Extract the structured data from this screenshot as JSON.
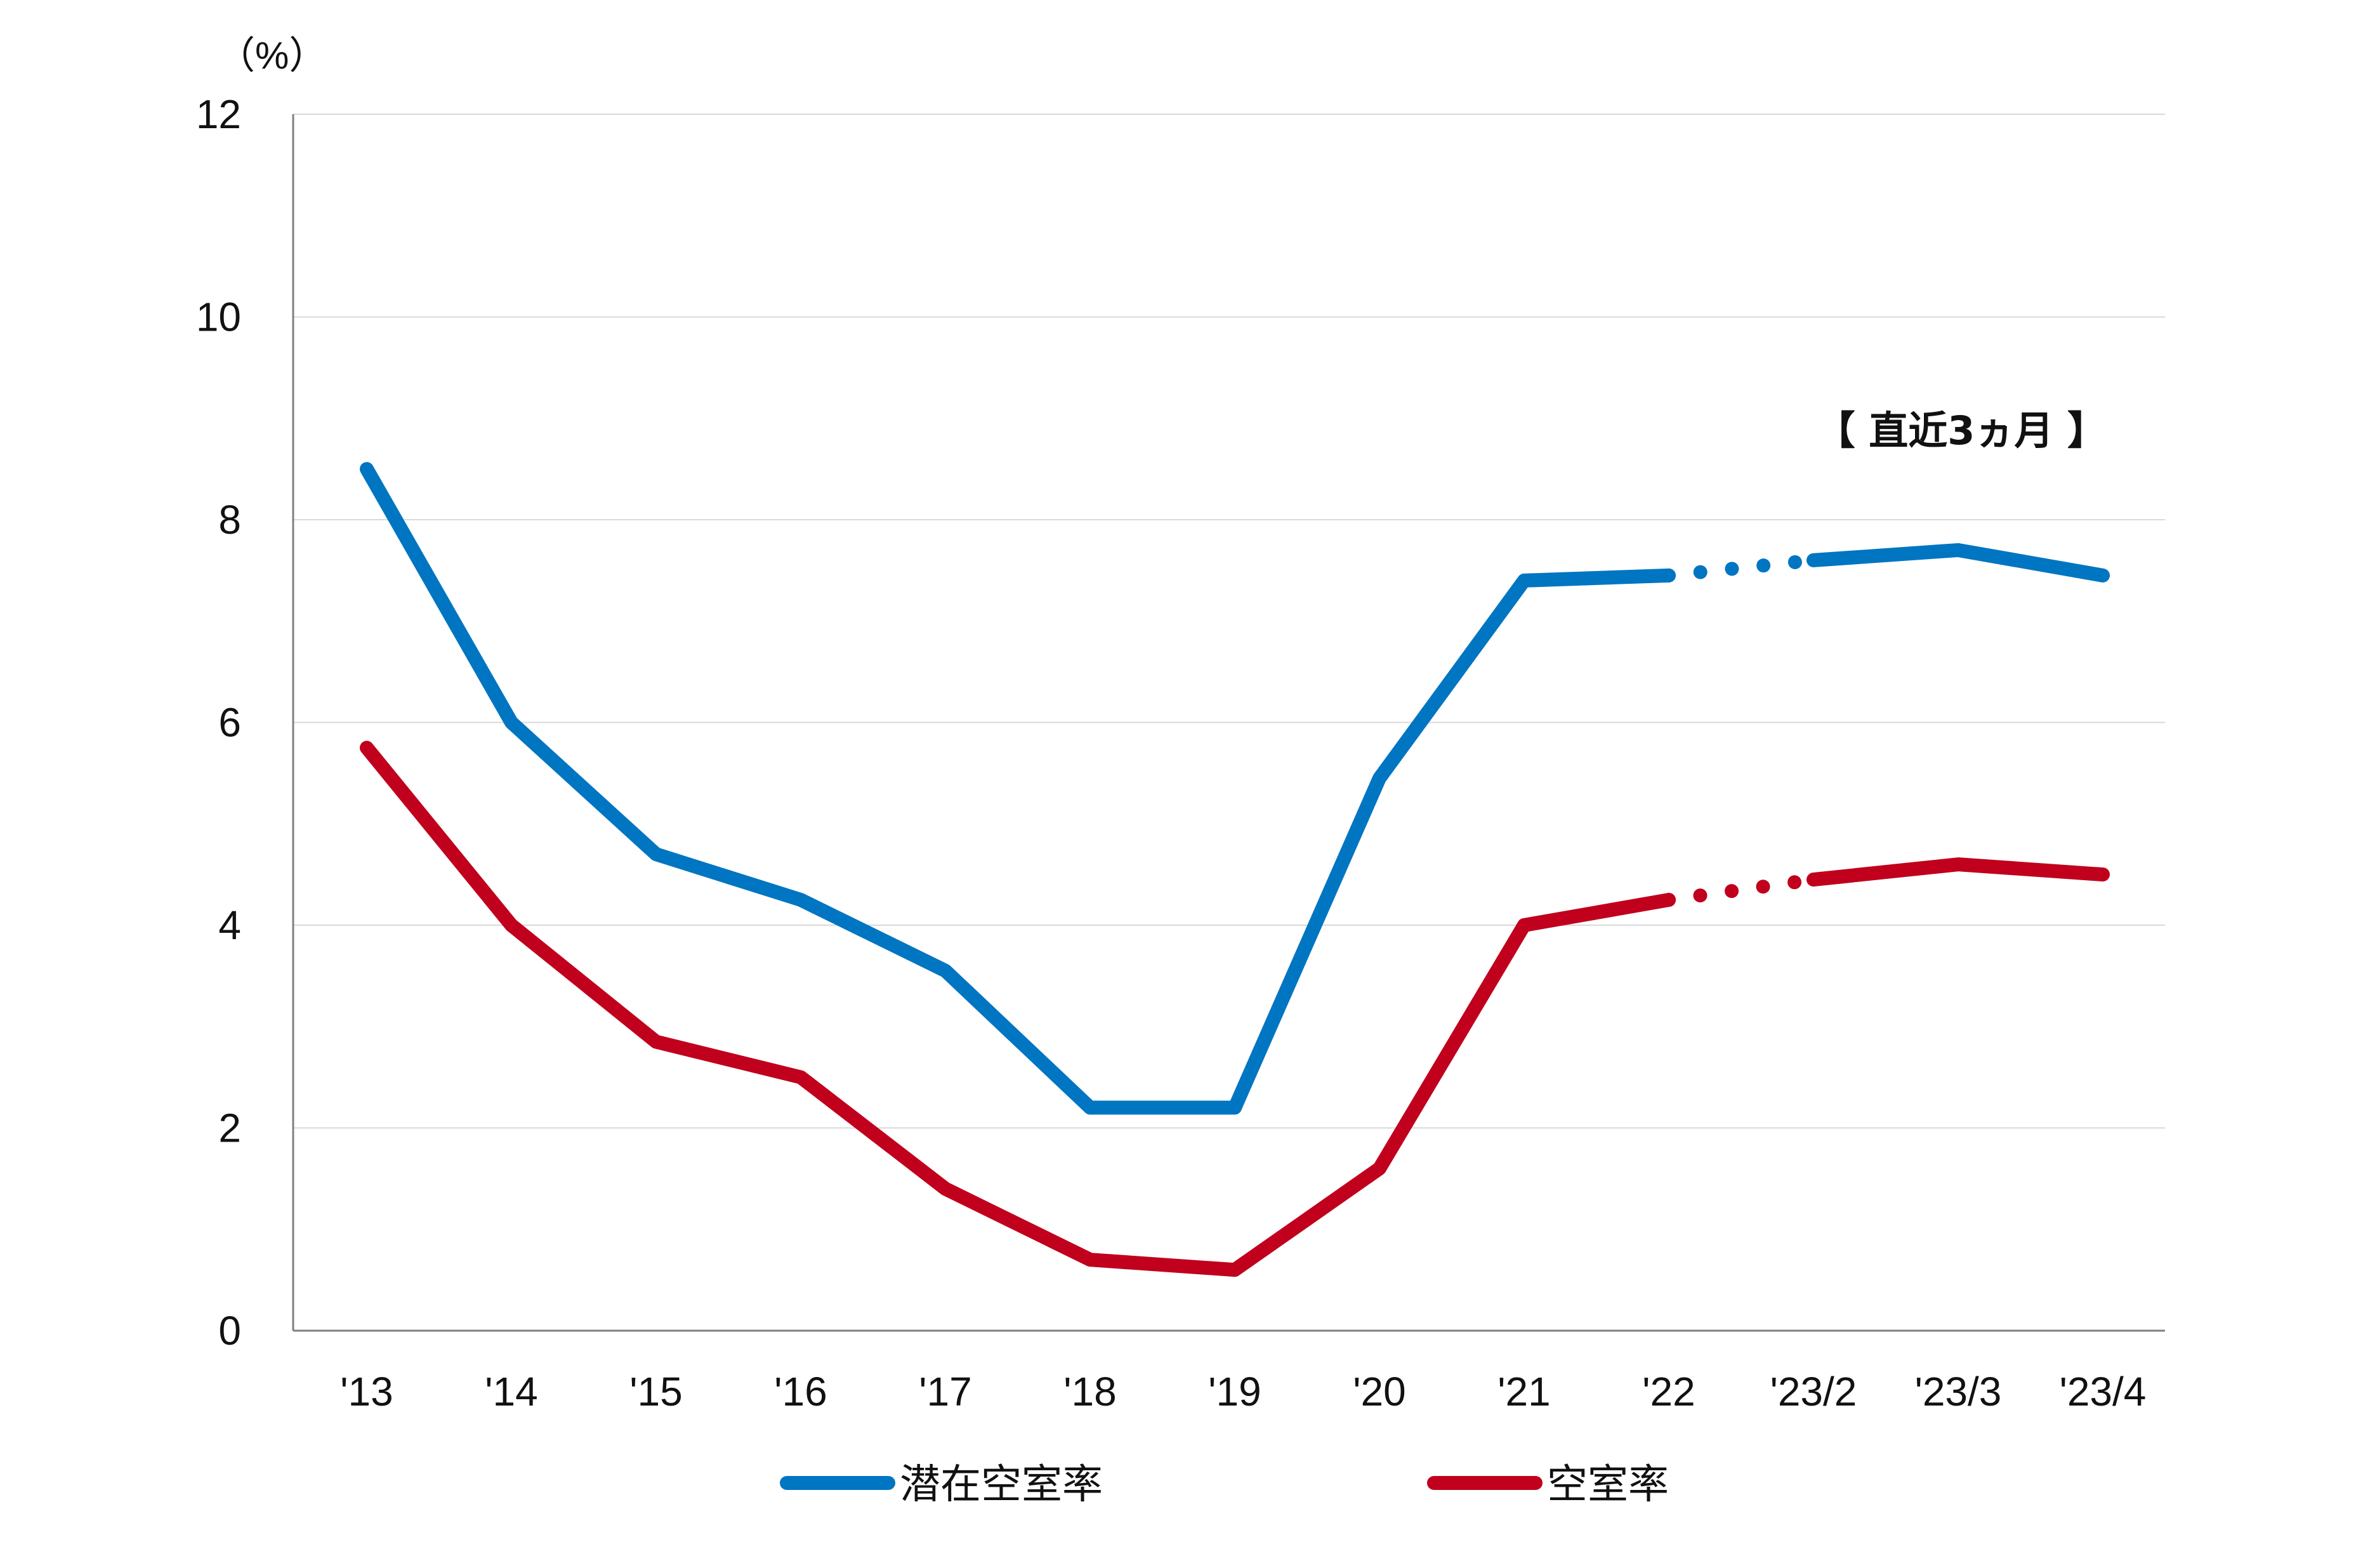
{
  "chart_data": {
    "type": "line",
    "categories": [
      "'13",
      "'14",
      "'15",
      "'16",
      "'17",
      "'18",
      "'19",
      "'20",
      "'21",
      "'22",
      "'23/2",
      "'23/3",
      "'23/4"
    ],
    "series": [
      {
        "name": "潜在空室率",
        "color": "#0075c2",
        "values": [
          8.5,
          6.0,
          4.7,
          4.25,
          3.55,
          2.2,
          2.2,
          5.45,
          7.4,
          7.45,
          7.6,
          7.7,
          7.45
        ]
      },
      {
        "name": "空室率",
        "color": "#c0001c",
        "values": [
          5.75,
          4.0,
          2.85,
          2.5,
          1.4,
          0.7,
          0.6,
          1.6,
          4.0,
          4.25,
          4.45,
          4.6,
          4.5
        ]
      }
    ],
    "dotted_segment": {
      "from": "'22",
      "to": "'23/2"
    },
    "ylabel": "（%）",
    "ylim": [
      0,
      12
    ],
    "yticks": [
      0,
      2,
      4,
      6,
      8,
      10,
      12
    ],
    "grid": true,
    "legend_position": "bottom",
    "annotation": "【 直近3ヵ月 】"
  }
}
